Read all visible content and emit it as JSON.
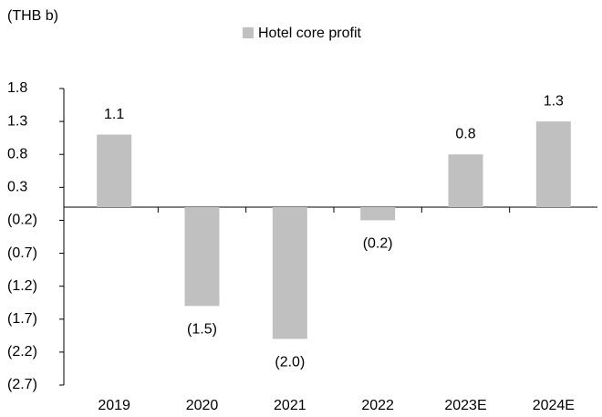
{
  "chart_data": {
    "type": "bar",
    "y_axis_label": "(THB b)",
    "categories": [
      "2019",
      "2020",
      "2021",
      "2022",
      "2023E",
      "2024E"
    ],
    "series": [
      {
        "name": "Hotel core profit",
        "color": "#c0c0c0",
        "values": [
          1.1,
          -1.5,
          -2.0,
          -0.2,
          0.8,
          1.3
        ],
        "value_labels": [
          "1.1",
          "(1.5)",
          "(2.0)",
          "(0.2)",
          "0.8",
          "1.3"
        ]
      }
    ],
    "ylim": [
      -2.7,
      1.8
    ],
    "yticks": [
      1.8,
      1.3,
      0.8,
      0.3,
      {
        "value": -0.2,
        "label": "(0.2)"
      },
      {
        "value": -0.7,
        "label": "(0.7)"
      },
      {
        "value": -1.2,
        "label": "(1.2)"
      },
      {
        "value": -1.7,
        "label": "(1.7)"
      },
      {
        "value": -2.2,
        "label": "(2.2)"
      },
      {
        "value": -2.7,
        "label": "(2.7)"
      }
    ],
    "legend": "top"
  }
}
